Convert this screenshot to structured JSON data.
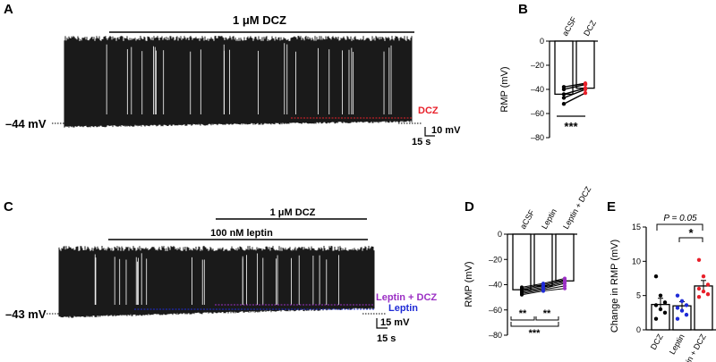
{
  "colors": {
    "black": "#000000",
    "red": "#e8202a",
    "blue": "#1f2bd6",
    "purple": "#9b2fc4"
  },
  "panels": {
    "A": {
      "label": "A",
      "bar_label": "1 μM DCZ",
      "vm_label": "–44 mV",
      "dcz_label": "DCZ",
      "scale_v": "10 mV",
      "scale_t": "15 s"
    },
    "C": {
      "label": "C",
      "bar1_label": "1 μM DCZ",
      "bar2_label": "100 nM leptin",
      "vm_label": "–43 mV",
      "lep_dcz_label": "Leptin + DCZ",
      "lep_label": "Leptin",
      "scale_v": "15 mV",
      "scale_t": "15 s"
    },
    "B": {
      "label": "B",
      "sig": "***"
    },
    "D": {
      "label": "D",
      "sig1": "**",
      "sig2": "**",
      "sig3": "***"
    },
    "E": {
      "label": "E",
      "p_text": "P = 0.05",
      "star": "*"
    }
  },
  "chart_data": [
    {
      "panel": "B",
      "type": "bar",
      "ylabel": "RMP (mV)",
      "ylim": [
        -80,
        0
      ],
      "yticks": [
        "0",
        "–20",
        "–40",
        "–60",
        "–80"
      ],
      "ytick_values": [
        0,
        -20,
        -40,
        -60,
        -80
      ],
      "categories": [
        "aCSF",
        "DCZ"
      ],
      "values": [
        -44,
        -39
      ],
      "paired": [
        [
          -38,
          -35
        ],
        [
          -40,
          -36
        ],
        [
          -44,
          -39
        ],
        [
          -47,
          -40
        ],
        [
          -52,
          -43
        ]
      ]
    },
    {
      "panel": "D",
      "type": "bar",
      "ylabel": "RMP (mV)",
      "ylim": [
        -80,
        0
      ],
      "yticks": [
        "0",
        "–20",
        "–40",
        "–60",
        "–80"
      ],
      "ytick_values": [
        0,
        -20,
        -40,
        -60,
        -80
      ],
      "categories": [
        "aCSF",
        "Leptin",
        "Leptin + DCZ"
      ],
      "values": [
        -44,
        -41,
        -37
      ],
      "paired": [
        [
          -42,
          -39,
          -35
        ],
        [
          -43,
          -40,
          -36
        ],
        [
          -44,
          -41,
          -37
        ],
        [
          -45,
          -42,
          -38
        ],
        [
          -46,
          -43,
          -39
        ],
        [
          -47,
          -44,
          -41
        ],
        [
          -48,
          -45,
          -43
        ]
      ]
    },
    {
      "panel": "E",
      "type": "bar",
      "ylabel": "Change in RMP (mV)",
      "ylim": [
        0,
        15
      ],
      "yticks": [
        "0",
        "5",
        "10",
        "15"
      ],
      "ytick_values": [
        0,
        5,
        10,
        15
      ],
      "categories": [
        "DCZ",
        "Leptin",
        "Leptin + DCZ"
      ],
      "values": [
        3.7,
        3.5,
        6.4
      ],
      "errors": [
        0.9,
        0.6,
        0.8
      ],
      "points": [
        [
          7.8,
          5.0,
          4.0,
          3.6,
          3.0,
          2.5,
          1.6
        ],
        [
          5.0,
          4.2,
          3.6,
          3.2,
          2.8,
          2.2,
          1.6
        ],
        [
          10.2,
          7.8,
          6.6,
          6.0,
          5.6,
          5.2,
          4.8
        ]
      ]
    }
  ]
}
